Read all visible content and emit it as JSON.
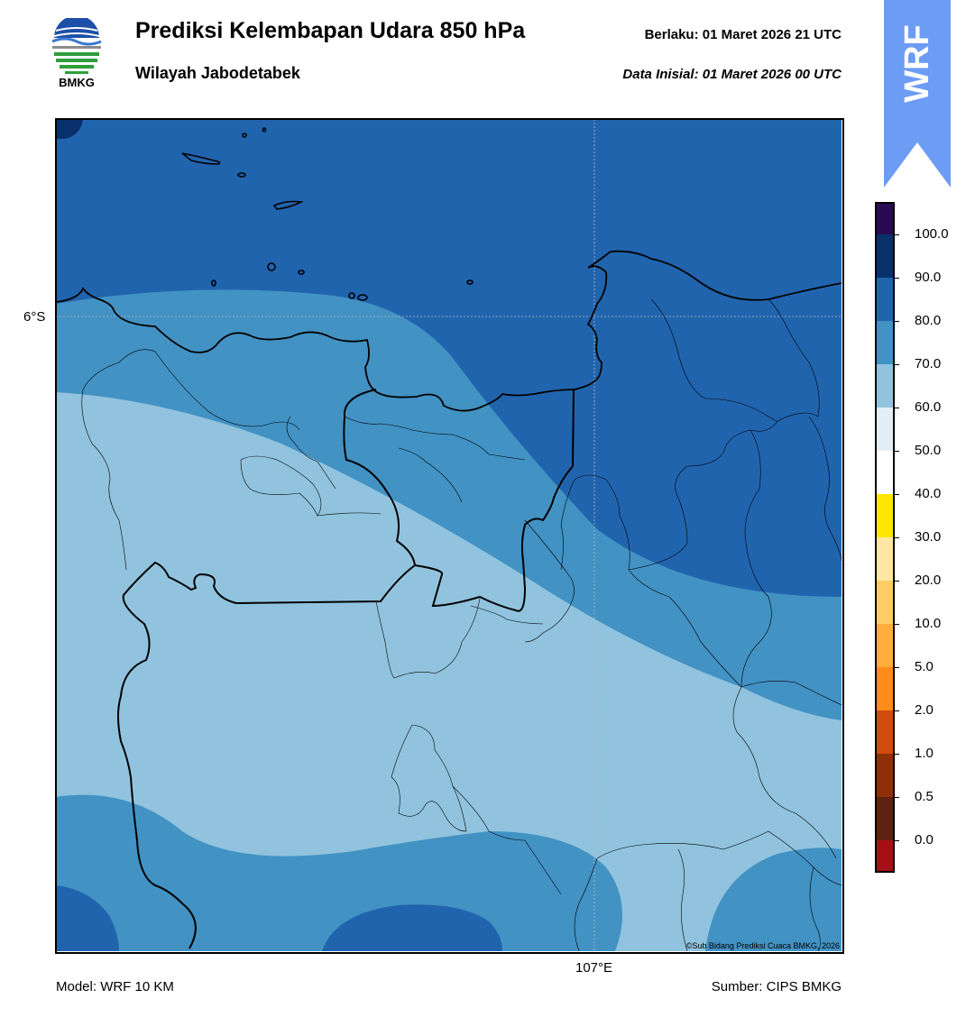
{
  "header": {
    "title": "Prediksi Kelembapan Udara 850 hPa",
    "subtitle": "Wilayah Jabodetabek",
    "valid": "Berlaku:  01 Maret 2026 21 UTC",
    "initial": "Data Inisial:  01 Maret 2026 00 UTC",
    "logo_text": "BMKG",
    "badge": "WRF"
  },
  "map": {
    "lat_label": "6°S",
    "lon_label": "107°E",
    "credit": "©Sub Bidang Prediksi Cuaca BMKG, 2026",
    "colors": {
      "class_50_60": "#e3eef7",
      "class_60_70": "#91c3de",
      "class_70_80": "#4292c4",
      "class_80_90": "#2164ae",
      "class_90_100": "#08306b"
    }
  },
  "footer": {
    "model": "Model: WRF 10 KM",
    "source": "Sumber: CIPS BMKG"
  },
  "colorbar": {
    "labels": [
      "100.0",
      "90.0",
      "80.0",
      "70.0",
      "60.0",
      "50.0",
      "40.0",
      "30.0",
      "20.0",
      "10.0",
      "5.0",
      "2.0",
      "1.0",
      "0.5",
      "0.0"
    ],
    "colors": [
      "#2a0a52",
      "#08306b",
      "#2164ae",
      "#4292c4",
      "#91c3de",
      "#e3eef7",
      "#ffffff",
      "#ffe500",
      "#ffe6a4",
      "#ffcc66",
      "#ffad3b",
      "#ff8c1a",
      "#d04b0c",
      "#8f2f08",
      "#5e2210",
      "#a50f15",
      "#e63a2e"
    ]
  }
}
